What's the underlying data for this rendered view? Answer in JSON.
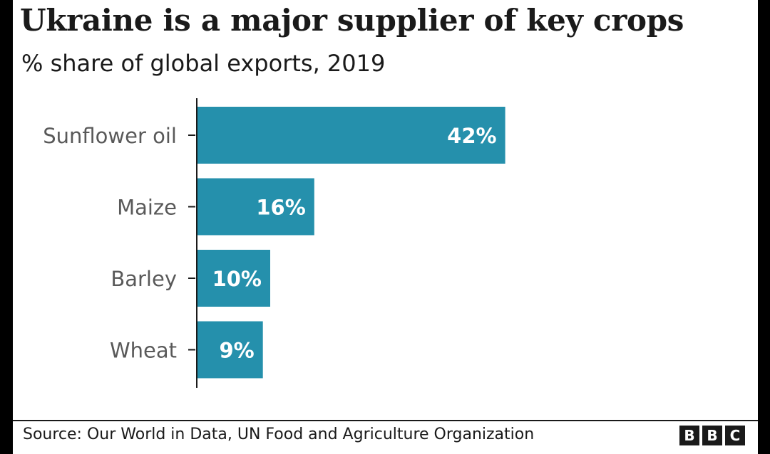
{
  "title": "Ukraine is a major supplier of key crops",
  "subtitle": "% share of global exports, 2019",
  "source": "Source: Our World in Data, UN Food and Agriculture Organization",
  "logo_letters": [
    "B",
    "B",
    "C"
  ],
  "colors": {
    "bar": "#2590ac",
    "axis": "#1a1a1a",
    "label": "#595959",
    "value_text": "#ffffff"
  },
  "chart_data": {
    "type": "bar",
    "orientation": "horizontal",
    "title": "Ukraine is a major supplier of key crops",
    "subtitle": "% share of global exports, 2019",
    "categories": [
      "Sunflower oil",
      "Maize",
      "Barley",
      "Wheat"
    ],
    "values": [
      42,
      16,
      10,
      9
    ],
    "data_labels": [
      "42%",
      "16%",
      "10%",
      "9%"
    ],
    "xlim": [
      0,
      100
    ],
    "grid": false,
    "legend": "none"
  }
}
